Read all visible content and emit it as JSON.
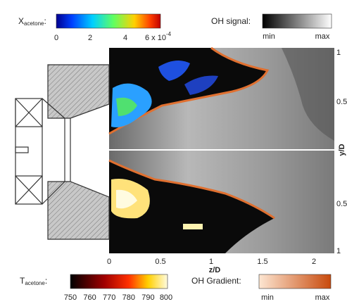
{
  "top_left_colorbar": {
    "label": "X",
    "label_sub": "acetone",
    "label_suffix": ":",
    "ticks": [
      "0",
      "2",
      "4",
      "6 x 10"
    ],
    "exponent": "-4"
  },
  "top_right_colorbar": {
    "label": "OH signal:",
    "min": "min",
    "max": "max"
  },
  "bottom_left_colorbar": {
    "label": "T",
    "label_sub": "acetone",
    "label_suffix": ":",
    "ticks": [
      "750",
      "760",
      "770",
      "780",
      "790",
      "800"
    ]
  },
  "bottom_right_colorbar": {
    "label": "OH Gradient:",
    "min": "min",
    "max": "max"
  },
  "axes": {
    "x_label": "z/D",
    "x_ticks": [
      "0",
      "0.5",
      "1",
      "1.5",
      "2"
    ],
    "y_label": "y/D",
    "y_ticks": [
      "1",
      "0.5",
      "0.5",
      "1"
    ]
  }
}
